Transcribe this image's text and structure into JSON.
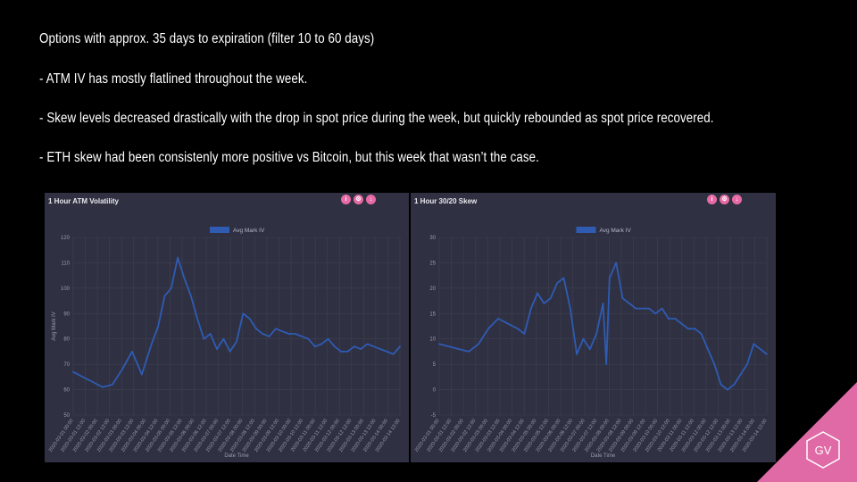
{
  "slide": {
    "lines": [
      "Options with approx. 35 days to expiration (filter 10 to 60 days)",
      "- ATM IV has mostly flatlined throughout the week.",
      "- Skew levels decreased drastically with the drop in spot price during the week, but quickly rebounded as spot price recovered.",
      "- ETH skew had been consistenly more positive vs Bitcoin, but this week that wasn’t the case."
    ]
  },
  "brand": {
    "logo_text": "GV",
    "accent": "#e06aa6"
  },
  "icons": [
    "info-icon",
    "settings-icon",
    "download-icon"
  ],
  "chart_data": [
    {
      "type": "line",
      "title": "1 Hour ATM Volatility",
      "xlabel": "Date Time",
      "ylabel": "Avg Mark IV",
      "ylim": [
        50,
        120
      ],
      "yticks": [
        50,
        60,
        70,
        80,
        90,
        100,
        110,
        120
      ],
      "legend": "top-center",
      "grid": true,
      "color": "#2f5bb3",
      "series": [
        {
          "name": "Avg Mark IV",
          "x": [
            0,
            0.03,
            0.06,
            0.09,
            0.12,
            0.15,
            0.18,
            0.21,
            0.24,
            0.26,
            0.28,
            0.3,
            0.32,
            0.34,
            0.36,
            0.38,
            0.4,
            0.42,
            0.44,
            0.46,
            0.48,
            0.5,
            0.52,
            0.54,
            0.56,
            0.58,
            0.6,
            0.62,
            0.64,
            0.66,
            0.68,
            0.7,
            0.72,
            0.74,
            0.76,
            0.78,
            0.8,
            0.82,
            0.84,
            0.86,
            0.88,
            0.9,
            0.92,
            0.94,
            0.96,
            0.98,
            1.0
          ],
          "values": [
            67,
            65,
            63,
            61,
            62,
            68,
            75,
            66,
            78,
            85,
            97,
            100,
            112,
            104,
            97,
            88,
            80,
            82,
            76,
            80,
            75,
            79,
            90,
            88,
            84,
            82,
            81,
            84,
            83,
            82,
            82,
            81,
            80,
            77,
            78,
            80,
            77,
            75,
            75,
            77,
            76,
            78,
            77,
            76,
            75,
            74,
            77
          ]
        }
      ]
    },
    {
      "type": "line",
      "title": "1 Hour 30/20 Skew",
      "xlabel": "Date Time",
      "ylabel": "",
      "ylim": [
        -5,
        30
      ],
      "yticks": [
        -5,
        0,
        5,
        10,
        15,
        20,
        25,
        30
      ],
      "legend": "top-center",
      "grid": true,
      "color": "#2f5bb3",
      "series": [
        {
          "name": "Avg Mark IV",
          "x": [
            0,
            0.03,
            0.06,
            0.09,
            0.12,
            0.15,
            0.18,
            0.21,
            0.24,
            0.26,
            0.28,
            0.3,
            0.32,
            0.34,
            0.36,
            0.38,
            0.4,
            0.42,
            0.44,
            0.46,
            0.48,
            0.5,
            0.51,
            0.52,
            0.54,
            0.56,
            0.58,
            0.6,
            0.62,
            0.64,
            0.66,
            0.68,
            0.7,
            0.72,
            0.74,
            0.76,
            0.78,
            0.8,
            0.82,
            0.84,
            0.86,
            0.88,
            0.9,
            0.92,
            0.94,
            0.96,
            0.98,
            1.0
          ],
          "values": [
            9,
            8.5,
            8,
            7.5,
            9,
            12,
            14,
            13,
            12,
            11,
            16,
            19,
            17,
            18,
            21,
            22,
            16,
            7,
            10,
            8,
            11,
            17,
            5,
            22,
            25,
            18,
            17,
            16,
            16,
            16,
            15,
            16,
            14,
            14,
            13,
            12,
            12,
            11,
            8,
            5,
            1,
            0,
            1,
            3,
            5,
            9,
            8,
            7
          ]
        }
      ]
    }
  ],
  "x_tick_labels": [
    "2020-03-01 00:00",
    "2020-03-01 12:00",
    "2020-03-02 00:00",
    "2020-03-02 12:00",
    "2020-03-03 00:00",
    "2020-03-03 12:00",
    "2020-03-04 00:00",
    "2020-03-04 12:00",
    "2020-03-05 00:00",
    "2020-03-05 12:00",
    "2020-03-06 00:00",
    "2020-03-06 12:00",
    "2020-03-07 00:00",
    "2020-03-07 12:00",
    "2020-03-08 00:00",
    "2020-03-08 12:00",
    "2020-03-09 00:00",
    "2020-03-09 12:00",
    "2020-03-10 00:00",
    "2020-03-10 12:00",
    "2020-03-11 00:00",
    "2020-03-11 12:00",
    "2020-03-12 00:00",
    "2020-03-12 12:00",
    "2020-03-13 00:00",
    "2020-03-13 12:00",
    "2020-03-14 00:00",
    "2020-03-14 12:00"
  ]
}
